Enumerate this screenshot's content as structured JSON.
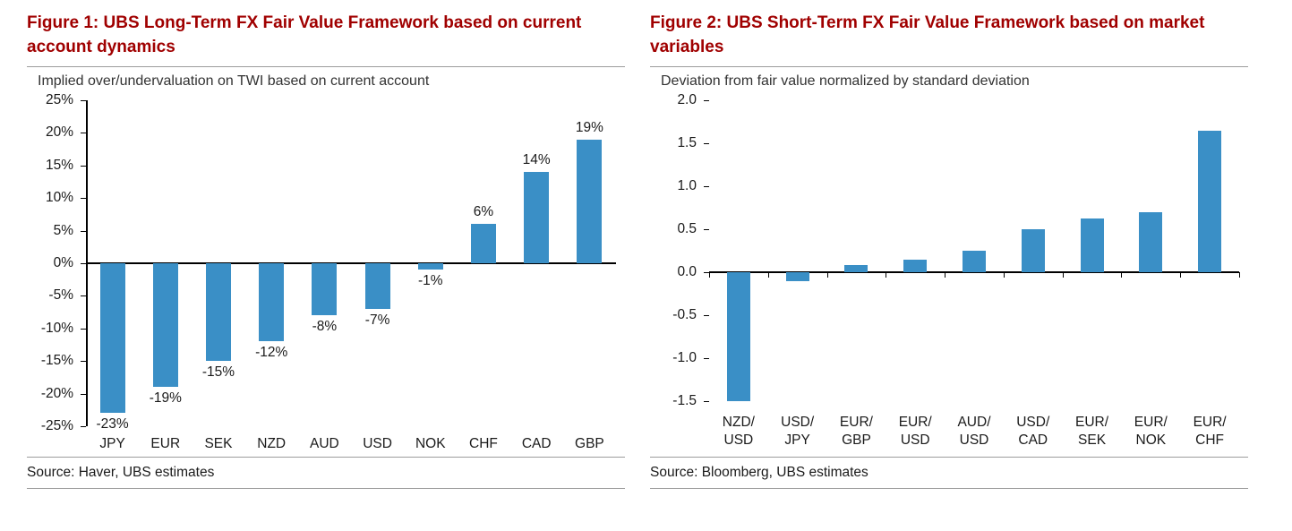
{
  "colors": {
    "bar": "#3A8FC6",
    "title": "#A00000",
    "rule": "#9D9D9D",
    "axis": "#000000"
  },
  "figure1": {
    "title": "Figure 1: UBS Long-Term FX Fair Value Framework based on current account dynamics",
    "subtitle": "Implied over/undervaluation on TWI based on current account",
    "source": "Source: Haver, UBS estimates"
  },
  "figure2": {
    "title": "Figure 2: UBS Short-Term FX Fair Value Framework based on market variables",
    "subtitle": "Deviation from fair value normalized by standard deviation",
    "source": "Source: Bloomberg, UBS estimates"
  },
  "chart_data": [
    {
      "type": "bar",
      "title": "Figure 1: UBS Long-Term FX Fair Value Framework based on current account dynamics",
      "subtitle": "Implied over/undervaluation on TWI based on current account",
      "categories": [
        "JPY",
        "EUR",
        "SEK",
        "NZD",
        "AUD",
        "USD",
        "NOK",
        "CHF",
        "CAD",
        "GBP"
      ],
      "values": [
        -23,
        -19,
        -15,
        -12,
        -8,
        -7,
        -1,
        6,
        14,
        19
      ],
      "data_labels": [
        "-23%",
        "-19%",
        "-15%",
        "-12%",
        "-8%",
        "-7%",
        "-1%",
        "6%",
        "14%",
        "19%"
      ],
      "ylim": [
        -25,
        25
      ],
      "ytick_step": 5,
      "ytick_format": "percent",
      "grid": false,
      "legend": "none",
      "source": "Source: Haver, UBS estimates"
    },
    {
      "type": "bar",
      "title": "Figure 2: UBS Short-Term FX Fair Value Framework based on market variables",
      "subtitle": "Deviation from fair value normalized by standard deviation",
      "categories": [
        "NZD/USD",
        "USD/JPY",
        "EUR/GBP",
        "EUR/USD",
        "AUD/USD",
        "USD/CAD",
        "EUR/SEK",
        "EUR/NOK",
        "EUR/CHF"
      ],
      "values": [
        -1.5,
        -0.1,
        0.08,
        0.15,
        0.25,
        0.5,
        0.63,
        0.7,
        1.65
      ],
      "ylim": [
        -1.5,
        2.0
      ],
      "ytick_step": 0.5,
      "ytick_format": "fixed1",
      "grid": false,
      "legend": "none",
      "source": "Source: Bloomberg, UBS estimates"
    }
  ]
}
